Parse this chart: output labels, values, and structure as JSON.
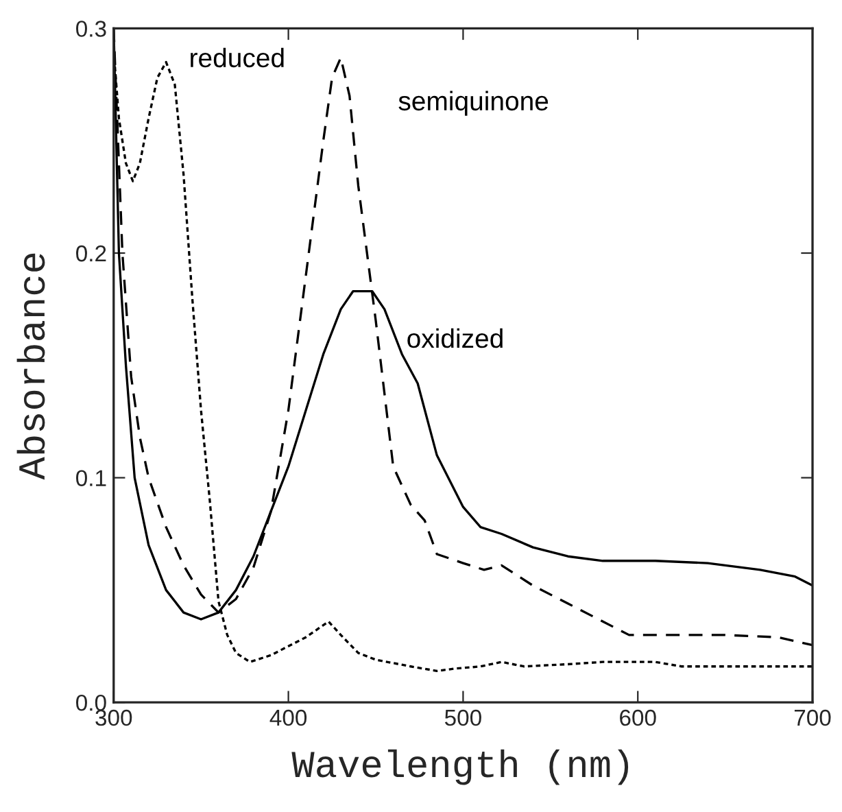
{
  "chart_data": {
    "type": "line",
    "xlabel": "Wavelength (nm)",
    "ylabel": "Absorbance",
    "xlim": [
      300,
      700
    ],
    "ylim": [
      0,
      0.3
    ],
    "xticks": [
      300,
      400,
      500,
      600,
      700
    ],
    "yticks": [
      {
        "value": 0,
        "label": "0.0"
      },
      {
        "value": 0.1,
        "label": "0.1"
      },
      {
        "value": 0.2,
        "label": "0.2"
      },
      {
        "value": 0.3,
        "label": "0.3"
      }
    ],
    "grid": false,
    "legend": false,
    "marker": "none",
    "series": [
      {
        "name": "reduced",
        "color": "#000000",
        "line_style": "dotted",
        "x": [
          300,
          303,
          307,
          311,
          315,
          320,
          325,
          330,
          335,
          340,
          345,
          350,
          355,
          360,
          365,
          370,
          378,
          390,
          400,
          410,
          423,
          430,
          440,
          450,
          470,
          485,
          495,
          510,
          522,
          535,
          560,
          580,
          610,
          625,
          650,
          700
        ],
        "values": [
          0.29,
          0.26,
          0.24,
          0.232,
          0.24,
          0.26,
          0.278,
          0.285,
          0.275,
          0.235,
          0.18,
          0.13,
          0.09,
          0.045,
          0.03,
          0.022,
          0.018,
          0.021,
          0.025,
          0.029,
          0.036,
          0.03,
          0.022,
          0.019,
          0.016,
          0.014,
          0.015,
          0.016,
          0.018,
          0.016,
          0.017,
          0.018,
          0.018,
          0.016,
          0.016,
          0.016
        ]
      },
      {
        "name": "semiquinone",
        "color": "#000000",
        "line_style": "dashed",
        "x": [
          300,
          305,
          310,
          315,
          320,
          330,
          340,
          350,
          360,
          370,
          380,
          390,
          400,
          410,
          420,
          425,
          430,
          435,
          440,
          450,
          460,
          470,
          478,
          485,
          500,
          512,
          522,
          540,
          560,
          580,
          595,
          620,
          650,
          680,
          700
        ],
        "values": [
          0.3,
          0.2,
          0.145,
          0.118,
          0.1,
          0.078,
          0.061,
          0.048,
          0.04,
          0.046,
          0.06,
          0.085,
          0.13,
          0.19,
          0.25,
          0.278,
          0.287,
          0.27,
          0.23,
          0.17,
          0.105,
          0.088,
          0.081,
          0.066,
          0.062,
          0.059,
          0.061,
          0.052,
          0.044,
          0.036,
          0.03,
          0.03,
          0.03,
          0.029,
          0.0255
        ]
      },
      {
        "name": "oxidized",
        "color": "#000000",
        "line_style": "solid",
        "x": [
          300,
          303,
          307,
          312,
          320,
          330,
          340,
          350,
          360,
          370,
          380,
          390,
          400,
          410,
          420,
          430,
          437,
          448,
          455,
          465,
          474,
          485,
          500,
          510,
          522,
          540,
          560,
          580,
          610,
          640,
          670,
          690,
          700
        ],
        "values": [
          0.3,
          0.2,
          0.15,
          0.1,
          0.07,
          0.05,
          0.04,
          0.037,
          0.04,
          0.05,
          0.065,
          0.085,
          0.105,
          0.13,
          0.155,
          0.175,
          0.183,
          0.183,
          0.175,
          0.155,
          0.142,
          0.11,
          0.087,
          0.078,
          0.075,
          0.069,
          0.065,
          0.063,
          0.063,
          0.062,
          0.059,
          0.056,
          0.052
        ]
      }
    ]
  }
}
